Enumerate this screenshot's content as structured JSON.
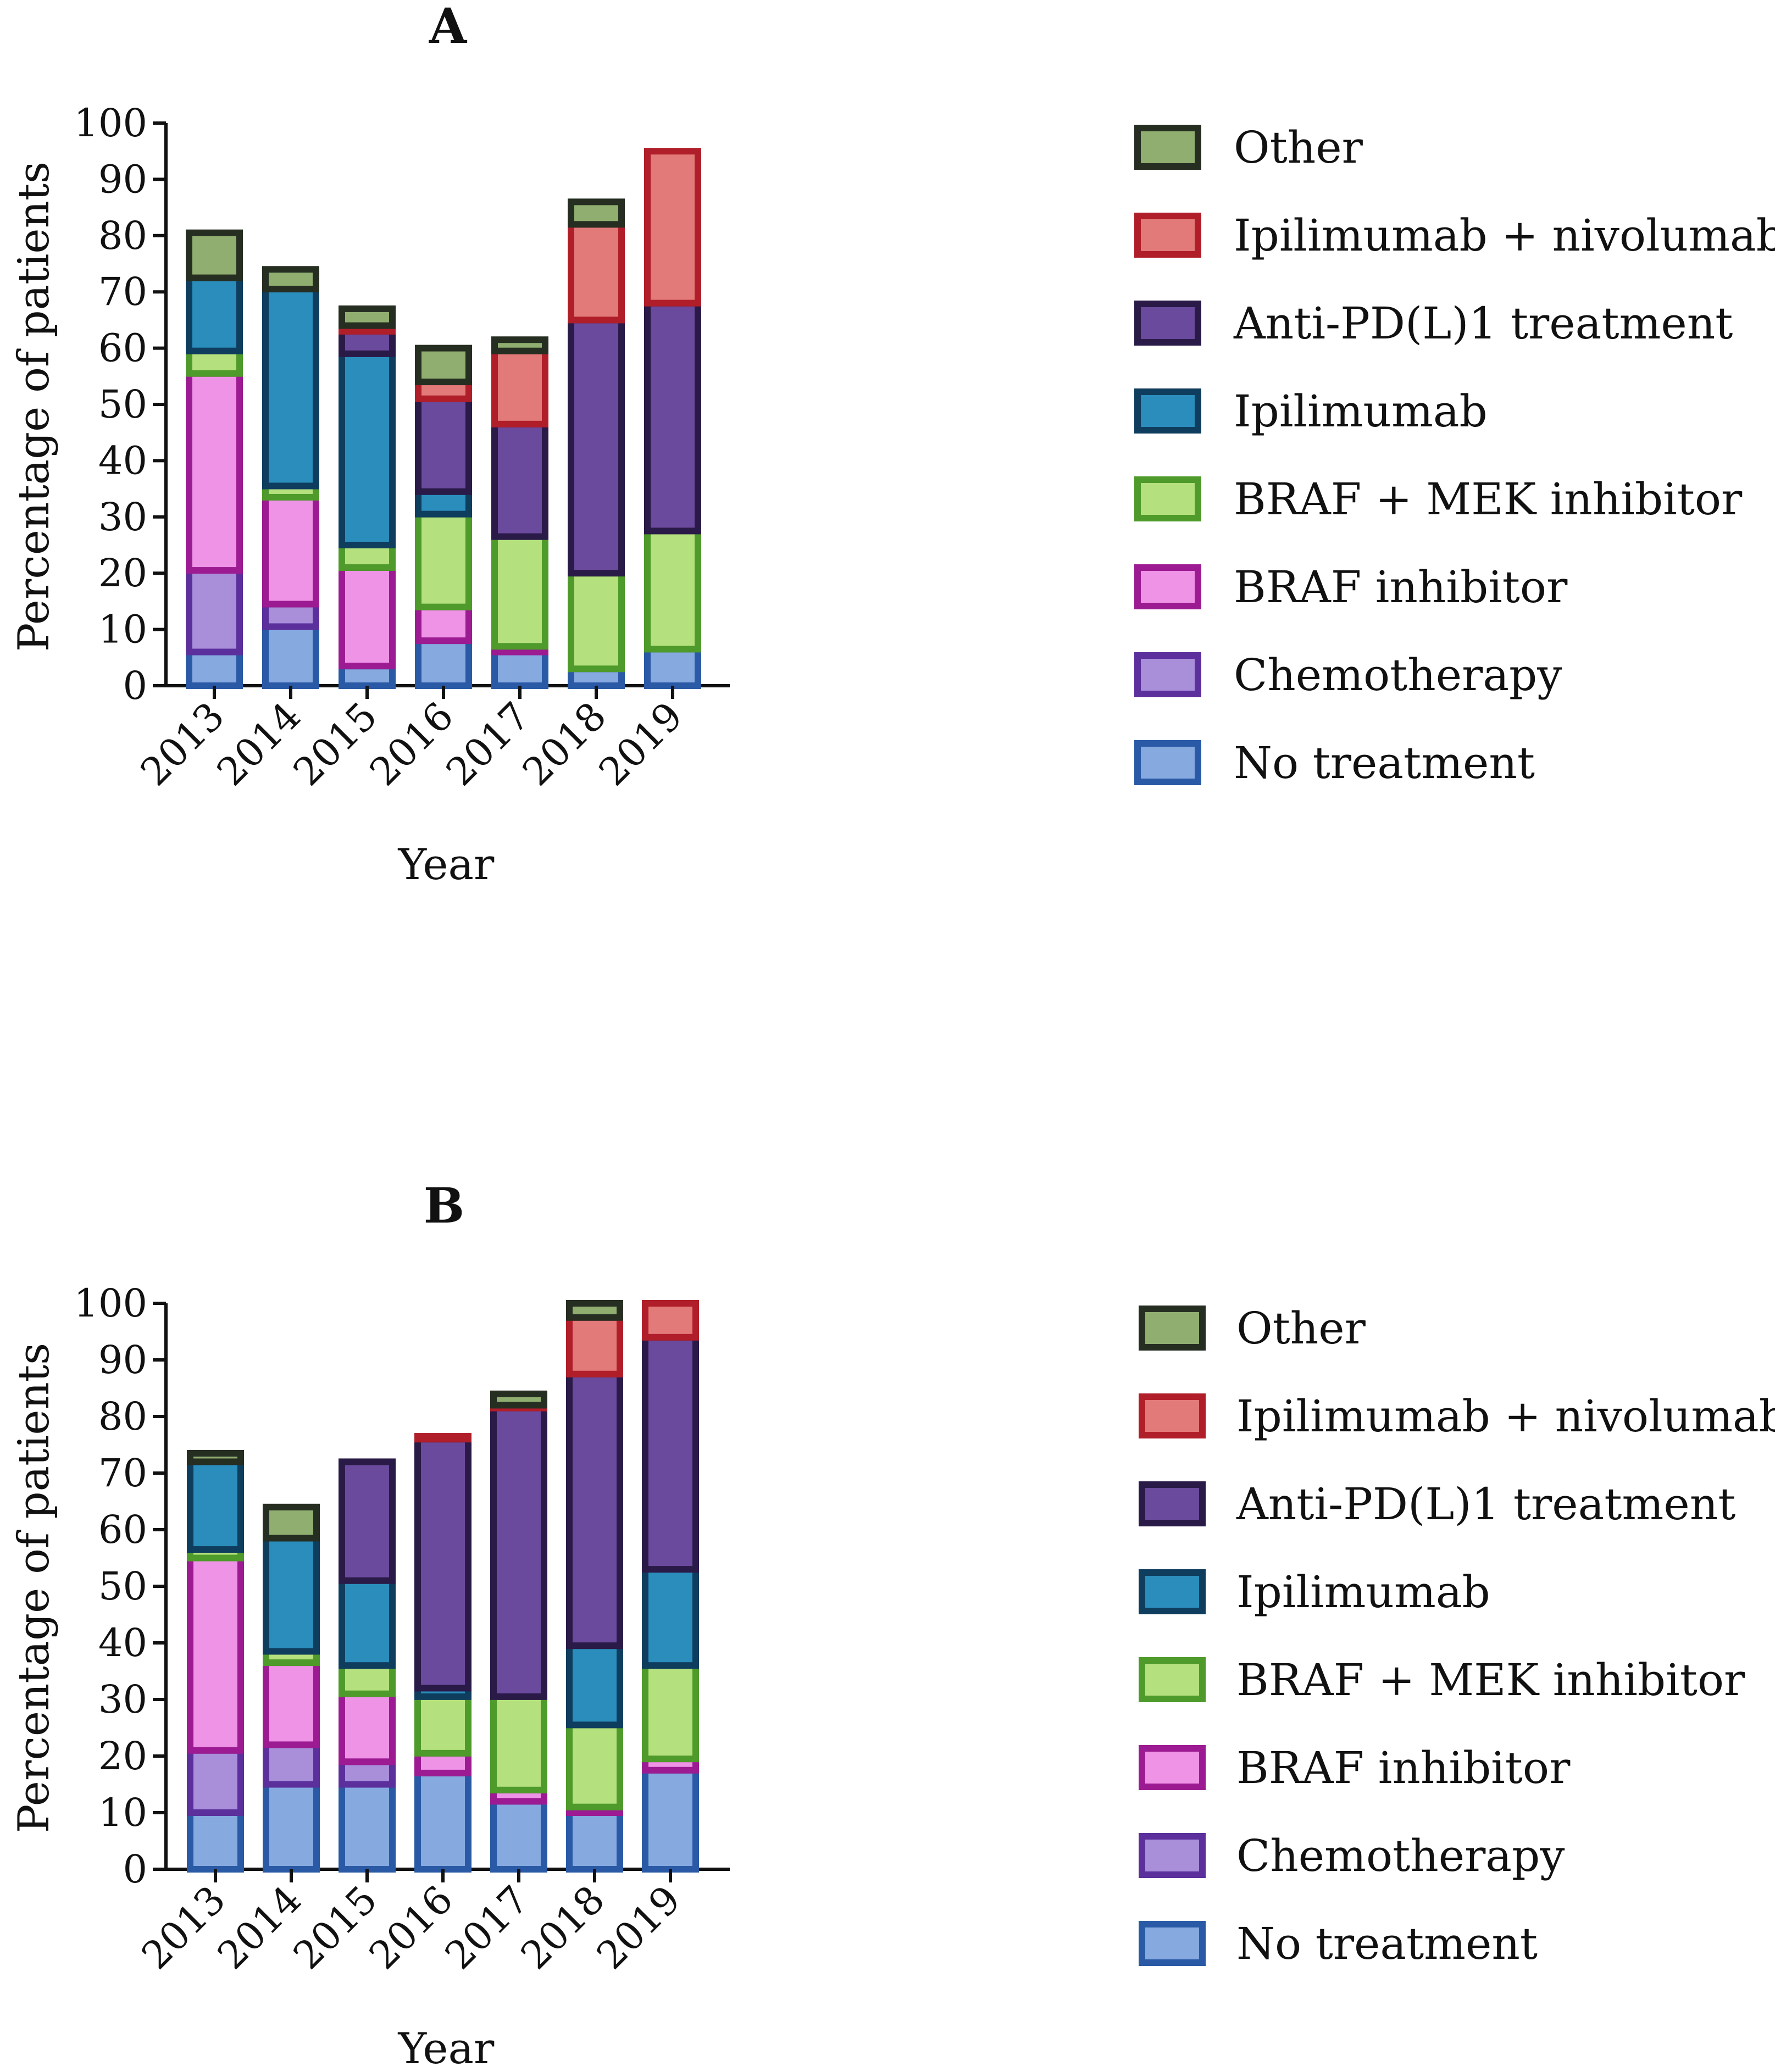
{
  "series_styles": [
    {
      "name": "No treatment",
      "fill": "#86a9e0",
      "stroke": "#2a5aa5"
    },
    {
      "name": "Chemotherapy",
      "fill": "#a98ed9",
      "stroke": "#5b2f9c"
    },
    {
      "name": "BRAF inhibitor",
      "fill": "#ef93e6",
      "stroke": "#9c1b92"
    },
    {
      "name": "BRAF + MEK inhibitor",
      "fill": "#b5e07e",
      "stroke": "#4e9a2a"
    },
    {
      "name": "Ipilimumab",
      "fill": "#2a8dbb",
      "stroke": "#0f3d5e"
    },
    {
      "name": "Anti-PD(L)1 treatment",
      "fill": "#6a4a9c",
      "stroke": "#2a1a48"
    },
    {
      "name": "Ipilimumab + nivolumab",
      "fill": "#e27a7a",
      "stroke": "#b01e2a"
    },
    {
      "name": "Other",
      "fill": "#8fae70",
      "stroke": "#262e22"
    }
  ],
  "chart_data": [
    {
      "type": "bar",
      "stacked": true,
      "title": "A",
      "xlabel": "Year",
      "ylabel": "Percentage of patients",
      "ylim": [
        0,
        100
      ],
      "yticks": [
        "0",
        "10",
        "20",
        "30",
        "40",
        "50",
        "60",
        "70",
        "80",
        "90",
        "100"
      ],
      "categories": [
        "2013",
        "2014",
        "2015",
        "2016",
        "2017",
        "2018",
        "2019"
      ],
      "legend_position": "right",
      "series": [
        {
          "name": "No treatment",
          "values": [
            6,
            10.5,
            3.5,
            8,
            6,
            3,
            6.5
          ]
        },
        {
          "name": "Chemotherapy",
          "values": [
            14.5,
            4,
            0,
            0,
            0,
            0,
            0
          ]
        },
        {
          "name": "BRAF inhibitor",
          "values": [
            35,
            19,
            17.5,
            6,
            1,
            0,
            0
          ]
        },
        {
          "name": "BRAF + MEK inhibitor",
          "values": [
            4,
            2,
            4,
            16.5,
            19.5,
            17,
            21
          ]
        },
        {
          "name": "Ipilimumab",
          "values": [
            13,
            35,
            34,
            4,
            0,
            0,
            0
          ]
        },
        {
          "name": "Anti-PD(L)1 treatment",
          "values": [
            0,
            0,
            4,
            16.5,
            20,
            45,
            40.5
          ]
        },
        {
          "name": "Ipilimumab + nivolumab",
          "values": [
            0,
            0,
            1,
            3,
            13,
            17,
            27
          ]
        },
        {
          "name": "Other",
          "values": [
            8,
            3.5,
            3,
            6,
            2,
            4,
            0
          ]
        }
      ]
    },
    {
      "type": "bar",
      "stacked": true,
      "title": "B",
      "xlabel": "Year",
      "ylabel": "Percentage of patients",
      "ylim": [
        0,
        100
      ],
      "yticks": [
        "0",
        "10",
        "20",
        "30",
        "40",
        "50",
        "60",
        "70",
        "80",
        "90",
        "100"
      ],
      "categories": [
        "2013",
        "2014",
        "2015",
        "2016",
        "2017",
        "2018",
        "2019"
      ],
      "legend_position": "right",
      "series": [
        {
          "name": "No treatment",
          "values": [
            10,
            15,
            15,
            17,
            12,
            10,
            17.5
          ]
        },
        {
          "name": "Chemotherapy",
          "values": [
            11,
            7,
            4,
            0,
            0,
            0,
            0
          ]
        },
        {
          "name": "BRAF inhibitor",
          "values": [
            34,
            14.5,
            12,
            3.5,
            2,
            1,
            2
          ]
        },
        {
          "name": "BRAF + MEK inhibitor",
          "values": [
            1.5,
            2,
            5,
            10,
            16.5,
            14.5,
            16.5
          ]
        },
        {
          "name": "Ipilimumab",
          "values": [
            15.5,
            20,
            15,
            1.5,
            0,
            14,
            17
          ]
        },
        {
          "name": "Anti-PD(L)1 treatment",
          "values": [
            0,
            0,
            21,
            44,
            51,
            48,
            41
          ]
        },
        {
          "name": "Ipilimumab + nivolumab",
          "values": [
            0,
            0,
            0,
            0.5,
            0.5,
            10,
            6
          ]
        },
        {
          "name": "Other",
          "values": [
            1.5,
            5.5,
            0,
            0,
            2,
            2.5,
            0
          ]
        }
      ]
    }
  ]
}
